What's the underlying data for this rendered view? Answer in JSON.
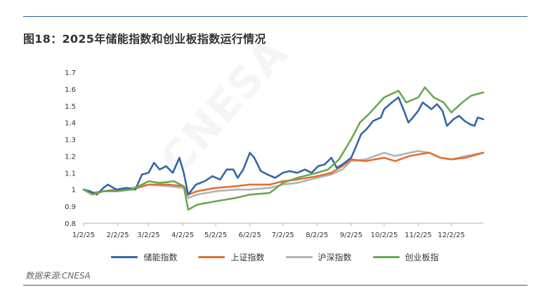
{
  "title": "图18：2025年储能指数和创业板指数运行情况",
  "source": "数据来源:CNESA",
  "watermark": "CNESA",
  "chart_data": {
    "type": "line",
    "ylim": [
      0.8,
      1.7
    ],
    "yticks": [
      "0.8",
      "0.9",
      "1",
      "1.1",
      "1.2",
      "1.3",
      "1.4",
      "1.5",
      "1.6",
      "1.7"
    ],
    "xticks": [
      "1/2/25",
      "2/2/25",
      "3/2/25",
      "4/2/25",
      "5/2/25",
      "6/2/25",
      "7/2/25",
      "8/2/25",
      "9/2/25",
      "10/2/25",
      "11/2/25",
      "12/2/25"
    ],
    "grid": false,
    "legend_position": "bottom",
    "series": [
      {
        "name": "储能指数",
        "color": "#3566a8",
        "points": [
          [
            "1/2/25",
            1.0
          ],
          [
            "1/8/25",
            0.99
          ],
          [
            "1/14/25",
            0.97
          ],
          [
            "1/20/25",
            1.01
          ],
          [
            "1/24/25",
            1.03
          ],
          [
            "2/1/25",
            1.0
          ],
          [
            "2/10/25",
            1.01
          ],
          [
            "2/18/25",
            1.0
          ],
          [
            "2/24/25",
            1.09
          ],
          [
            "3/2/25",
            1.1
          ],
          [
            "3/7/25",
            1.16
          ],
          [
            "3/12/25",
            1.12
          ],
          [
            "3/18/25",
            1.14
          ],
          [
            "3/24/25",
            1.1
          ],
          [
            "3/30/25",
            1.19
          ],
          [
            "4/3/25",
            1.1
          ],
          [
            "4/7/25",
            0.97
          ],
          [
            "4/14/25",
            1.03
          ],
          [
            "4/22/25",
            1.05
          ],
          [
            "4/29/25",
            1.08
          ],
          [
            "5/6/25",
            1.06
          ],
          [
            "5/12/25",
            1.12
          ],
          [
            "5/18/25",
            1.12
          ],
          [
            "5/22/25",
            1.07
          ],
          [
            "5/27/25",
            1.12
          ],
          [
            "6/2/25",
            1.22
          ],
          [
            "6/6/25",
            1.19
          ],
          [
            "6/12/25",
            1.11
          ],
          [
            "6/18/25",
            1.09
          ],
          [
            "6/25/25",
            1.07
          ],
          [
            "7/2/25",
            1.1
          ],
          [
            "7/8/25",
            1.11
          ],
          [
            "7/15/25",
            1.1
          ],
          [
            "7/22/25",
            1.12
          ],
          [
            "7/28/25",
            1.1
          ],
          [
            "8/3/25",
            1.14
          ],
          [
            "8/9/25",
            1.15
          ],
          [
            "8/15/25",
            1.19
          ],
          [
            "8/20/25",
            1.13
          ],
          [
            "8/25/25",
            1.15
          ],
          [
            "9/2/25",
            1.19
          ],
          [
            "9/6/25",
            1.25
          ],
          [
            "9/11/25",
            1.33
          ],
          [
            "9/16/25",
            1.36
          ],
          [
            "9/22/25",
            1.41
          ],
          [
            "9/29/25",
            1.43
          ],
          [
            "10/2/25",
            1.48
          ],
          [
            "10/9/25",
            1.52
          ],
          [
            "10/15/25",
            1.55
          ],
          [
            "10/20/25",
            1.47
          ],
          [
            "10/24/25",
            1.4
          ],
          [
            "10/28/25",
            1.43
          ],
          [
            "11/2/25",
            1.47
          ],
          [
            "11/6/25",
            1.52
          ],
          [
            "11/10/25",
            1.5
          ],
          [
            "11/14/25",
            1.48
          ],
          [
            "11/19/25",
            1.51
          ],
          [
            "11/24/25",
            1.47
          ],
          [
            "11/28/25",
            1.38
          ],
          [
            "12/4/25",
            1.42
          ],
          [
            "12/9/25",
            1.44
          ],
          [
            "12/14/25",
            1.41
          ],
          [
            "12/19/25",
            1.39
          ],
          [
            "12/23/25",
            1.38
          ],
          [
            "12/26/25",
            1.43
          ],
          [
            "12/31/25",
            1.42
          ]
        ]
      },
      {
        "name": "上证指数",
        "color": "#e46f2f",
        "points": [
          [
            "1/2/25",
            1.0
          ],
          [
            "1/10/25",
            0.98
          ],
          [
            "1/20/25",
            0.99
          ],
          [
            "2/1/25",
            1.0
          ],
          [
            "2/15/25",
            1.0
          ],
          [
            "3/2/25",
            1.03
          ],
          [
            "3/20/25",
            1.03
          ],
          [
            "4/3/25",
            1.02
          ],
          [
            "4/7/25",
            0.97
          ],
          [
            "4/15/25",
            0.99
          ],
          [
            "5/2/25",
            1.01
          ],
          [
            "5/20/25",
            1.02
          ],
          [
            "6/2/25",
            1.03
          ],
          [
            "6/20/25",
            1.03
          ],
          [
            "7/2/25",
            1.05
          ],
          [
            "7/15/25",
            1.06
          ],
          [
            "8/2/25",
            1.08
          ],
          [
            "8/15/25",
            1.1
          ],
          [
            "8/25/25",
            1.14
          ],
          [
            "9/2/25",
            1.18
          ],
          [
            "9/15/25",
            1.17
          ],
          [
            "10/2/25",
            1.19
          ],
          [
            "10/12/25",
            1.17
          ],
          [
            "10/25/25",
            1.2
          ],
          [
            "11/2/25",
            1.21
          ],
          [
            "11/12/25",
            1.22
          ],
          [
            "11/22/25",
            1.19
          ],
          [
            "12/2/25",
            1.18
          ],
          [
            "12/15/25",
            1.19
          ],
          [
            "12/31/25",
            1.22
          ]
        ]
      },
      {
        "name": "沪深指数",
        "color": "#b3b3b3",
        "points": [
          [
            "1/2/25",
            1.0
          ],
          [
            "1/10/25",
            0.98
          ],
          [
            "1/20/25",
            0.99
          ],
          [
            "2/1/25",
            1.0
          ],
          [
            "2/15/25",
            1.01
          ],
          [
            "3/2/25",
            1.03
          ],
          [
            "3/20/25",
            1.02
          ],
          [
            "4/3/25",
            1.01
          ],
          [
            "4/7/25",
            0.95
          ],
          [
            "4/15/25",
            0.97
          ],
          [
            "5/2/25",
            0.99
          ],
          [
            "5/20/25",
            1.0
          ],
          [
            "6/2/25",
            1.0
          ],
          [
            "6/20/25",
            1.01
          ],
          [
            "7/2/25",
            1.03
          ],
          [
            "7/15/25",
            1.04
          ],
          [
            "8/2/25",
            1.07
          ],
          [
            "8/15/25",
            1.09
          ],
          [
            "8/25/25",
            1.12
          ],
          [
            "9/2/25",
            1.17
          ],
          [
            "9/15/25",
            1.18
          ],
          [
            "10/2/25",
            1.22
          ],
          [
            "10/12/25",
            1.2
          ],
          [
            "10/25/25",
            1.22
          ],
          [
            "11/2/25",
            1.23
          ],
          [
            "11/12/25",
            1.22
          ],
          [
            "11/22/25",
            1.19
          ],
          [
            "12/2/25",
            1.18
          ],
          [
            "12/15/25",
            1.2
          ],
          [
            "12/31/25",
            1.22
          ]
        ]
      },
      {
        "name": "创业板指",
        "color": "#6aa84f",
        "points": [
          [
            "1/2/25",
            1.0
          ],
          [
            "1/10/25",
            0.97
          ],
          [
            "1/20/25",
            0.99
          ],
          [
            "2/1/25",
            0.99
          ],
          [
            "2/15/25",
            1.0
          ],
          [
            "3/2/25",
            1.05
          ],
          [
            "3/12/25",
            1.04
          ],
          [
            "3/25/25",
            1.05
          ],
          [
            "4/3/25",
            1.02
          ],
          [
            "4/7/25",
            0.88
          ],
          [
            "4/15/25",
            0.91
          ],
          [
            "5/2/25",
            0.93
          ],
          [
            "5/20/25",
            0.95
          ],
          [
            "6/2/25",
            0.97
          ],
          [
            "6/20/25",
            0.98
          ],
          [
            "7/2/25",
            1.04
          ],
          [
            "7/15/25",
            1.07
          ],
          [
            "8/2/25",
            1.1
          ],
          [
            "8/12/25",
            1.12
          ],
          [
            "8/22/25",
            1.18
          ],
          [
            "9/2/25",
            1.3
          ],
          [
            "9/10/25",
            1.4
          ],
          [
            "9/18/25",
            1.45
          ],
          [
            "10/2/25",
            1.55
          ],
          [
            "10/15/25",
            1.59
          ],
          [
            "10/22/25",
            1.52
          ],
          [
            "11/2/25",
            1.55
          ],
          [
            "11/8/25",
            1.61
          ],
          [
            "11/16/25",
            1.55
          ],
          [
            "11/25/25",
            1.52
          ],
          [
            "12/2/25",
            1.46
          ],
          [
            "12/12/25",
            1.52
          ],
          [
            "12/20/25",
            1.56
          ],
          [
            "12/31/25",
            1.58
          ]
        ]
      }
    ]
  }
}
